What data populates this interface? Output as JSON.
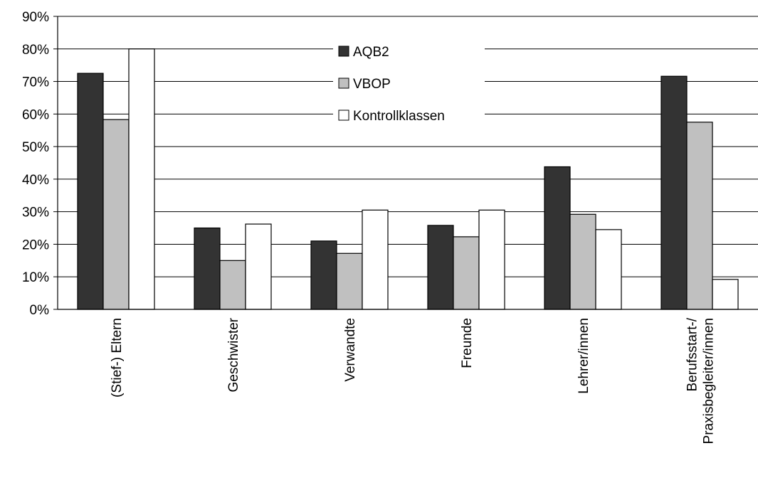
{
  "chart_data": {
    "type": "bar",
    "title": "",
    "xlabel": "",
    "ylabel": "",
    "ylim": [
      0,
      90
    ],
    "yticks": [
      0,
      10,
      20,
      30,
      40,
      50,
      60,
      70,
      80,
      90
    ],
    "ytick_labels": [
      "0%",
      "10%",
      "20%",
      "30%",
      "40%",
      "50%",
      "60%",
      "70%",
      "80%",
      "90%"
    ],
    "grid": true,
    "legend_position": "top-center",
    "categories": [
      [
        "(Stief-) Eltern"
      ],
      [
        "Geschwister"
      ],
      [
        "Verwandte"
      ],
      [
        "Freunde"
      ],
      [
        "Lehrer/innen"
      ],
      [
        "Berufsstart-/",
        "Praxisbegleiter/innen"
      ]
    ],
    "series": [
      {
        "name": "AQB2",
        "color": "#333333",
        "values": [
          72.5,
          25,
          21,
          25.8,
          43.8,
          71.6
        ]
      },
      {
        "name": "VBOP",
        "color": "#c0c0c0",
        "values": [
          58.3,
          15,
          17.2,
          22.3,
          29.2,
          57.5
        ]
      },
      {
        "name": "Kontrollklassen",
        "color": "#ffffff",
        "values": [
          80,
          26.2,
          30.5,
          30.5,
          24.5,
          9.2
        ]
      }
    ]
  }
}
